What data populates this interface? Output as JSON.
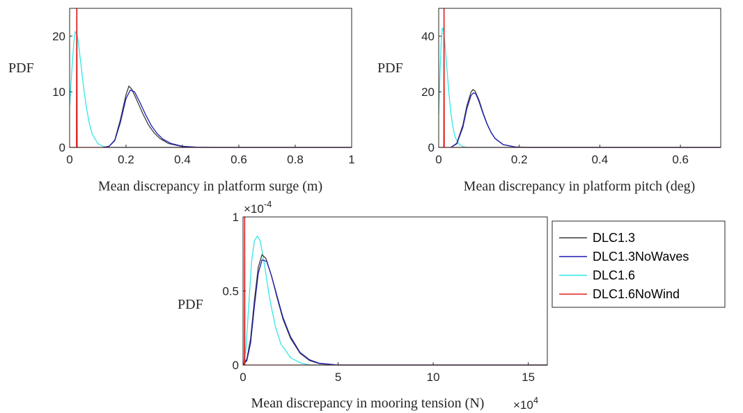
{
  "chart_data": [
    {
      "type": "line",
      "xlabel": "Mean discrepancy in platform surge (m)",
      "ylabel": "PDF",
      "xlim": [
        0,
        1
      ],
      "ylim": [
        0,
        25
      ],
      "xticks": [
        {
          "v": 0,
          "t": "0"
        },
        {
          "v": 0.2,
          "t": "0.2"
        },
        {
          "v": 0.4,
          "t": "0.4"
        },
        {
          "v": 0.6,
          "t": "0.6"
        },
        {
          "v": 0.8,
          "t": "0.8"
        },
        {
          "v": 1,
          "t": "1"
        }
      ],
      "yticks": [
        {
          "v": 0,
          "t": "0"
        },
        {
          "v": 10,
          "t": "10"
        },
        {
          "v": 20,
          "t": "20"
        }
      ],
      "grid": false,
      "series": [
        {
          "name": "DLC1.3",
          "color": "#3a3a3a",
          "x": [
            0.12,
            0.14,
            0.16,
            0.18,
            0.2,
            0.21,
            0.22,
            0.24,
            0.26,
            0.28,
            0.3,
            0.32,
            0.35,
            0.4,
            0.45,
            0.5,
            1.0
          ],
          "y": [
            0,
            0.2,
            1.3,
            5.0,
            9.5,
            11.0,
            10.5,
            8.3,
            6.0,
            4.0,
            2.6,
            1.6,
            0.7,
            0.15,
            0.03,
            0,
            0
          ]
        },
        {
          "name": "DLC1.3NoWaves",
          "color": "#1a1ab0",
          "x": [
            0.12,
            0.14,
            0.16,
            0.18,
            0.2,
            0.215,
            0.23,
            0.25,
            0.27,
            0.29,
            0.31,
            0.33,
            0.36,
            0.4,
            0.45,
            0.5,
            1.0
          ],
          "y": [
            0,
            0.2,
            1.2,
            4.5,
            8.8,
            10.3,
            10.0,
            8.0,
            5.8,
            3.9,
            2.5,
            1.5,
            0.7,
            0.2,
            0.04,
            0,
            0
          ]
        },
        {
          "name": "DLC1.6",
          "color": "#33e6e6",
          "x": [
            0,
            0.005,
            0.01,
            0.015,
            0.02,
            0.025,
            0.03,
            0.04,
            0.05,
            0.06,
            0.07,
            0.08,
            0.1,
            0.12,
            0.14,
            1.0
          ],
          "y": [
            7.5,
            11.5,
            15.5,
            19.0,
            20.8,
            20.5,
            19.2,
            15.0,
            10.5,
            7.0,
            4.3,
            2.4,
            0.7,
            0.15,
            0,
            0
          ]
        },
        {
          "name": "DLC1.6NoWind",
          "color": "#e02020",
          "x": [
            0,
            0.024,
            0.025,
            0.026,
            0.027,
            1.0
          ],
          "y": [
            0,
            0,
            25,
            25,
            0,
            0
          ]
        }
      ]
    },
    {
      "type": "line",
      "xlabel": "Mean discrepancy in platform pitch (deg)",
      "ylabel": "PDF",
      "xlim": [
        0,
        0.7
      ],
      "ylim": [
        0,
        50
      ],
      "xticks": [
        {
          "v": 0,
          "t": "0"
        },
        {
          "v": 0.2,
          "t": "0.2"
        },
        {
          "v": 0.4,
          "t": "0.4"
        },
        {
          "v": 0.6,
          "t": "0.6"
        }
      ],
      "yticks": [
        {
          "v": 0,
          "t": "0"
        },
        {
          "v": 20,
          "t": "20"
        },
        {
          "v": 40,
          "t": "40"
        }
      ],
      "grid": false,
      "series": [
        {
          "name": "DLC1.3",
          "color": "#3a3a3a",
          "x": [
            0.03,
            0.045,
            0.06,
            0.07,
            0.08,
            0.085,
            0.09,
            0.1,
            0.11,
            0.12,
            0.13,
            0.14,
            0.16,
            0.19,
            0.22,
            0.7
          ],
          "y": [
            0,
            1.5,
            8.0,
            15.0,
            19.8,
            20.8,
            20.3,
            17.0,
            12.5,
            8.5,
            5.4,
            3.2,
            1.0,
            0.15,
            0,
            0
          ]
        },
        {
          "name": "DLC1.3NoWaves",
          "color": "#1a1ab0",
          "x": [
            0.03,
            0.045,
            0.06,
            0.07,
            0.08,
            0.086,
            0.092,
            0.1,
            0.11,
            0.12,
            0.13,
            0.14,
            0.16,
            0.19,
            0.22,
            0.7
          ],
          "y": [
            0,
            1.3,
            7.2,
            14.0,
            18.6,
            19.6,
            19.3,
            16.5,
            12.2,
            8.4,
            5.4,
            3.2,
            1.0,
            0.15,
            0,
            0
          ]
        },
        {
          "name": "DLC1.6",
          "color": "#33e6e6",
          "x": [
            0,
            0.003,
            0.006,
            0.009,
            0.012,
            0.015,
            0.02,
            0.025,
            0.03,
            0.035,
            0.04,
            0.05,
            0.06,
            0.07,
            0.7
          ],
          "y": [
            12,
            26,
            37,
            43,
            42,
            38,
            29,
            20,
            12.5,
            7.5,
            4.0,
            1.2,
            0.3,
            0,
            0
          ]
        },
        {
          "name": "DLC1.6NoWind",
          "color": "#e02020",
          "x": [
            0,
            0.0125,
            0.013,
            0.0135,
            0.014,
            0.7
          ],
          "y": [
            0,
            0,
            50,
            50,
            0,
            0
          ]
        }
      ]
    },
    {
      "type": "line",
      "xlabel": "Mean discrepancy in mooring tension (N)",
      "ylabel": "PDF",
      "xlim": [
        0,
        16
      ],
      "ylim": [
        0,
        1
      ],
      "x_multiplier": "×10",
      "x_multiplier_exp": "4",
      "y_multiplier": "×10",
      "y_multiplier_exp": "-4",
      "xticks": [
        {
          "v": 0,
          "t": "0"
        },
        {
          "v": 5,
          "t": "5"
        },
        {
          "v": 10,
          "t": "10"
        },
        {
          "v": 15,
          "t": "15"
        }
      ],
      "yticks": [
        {
          "v": 0,
          "t": "0"
        },
        {
          "v": 0.5,
          "t": "0.5"
        },
        {
          "v": 1,
          "t": "1"
        }
      ],
      "grid": false,
      "series": [
        {
          "name": "DLC1.3",
          "color": "#3a3a3a",
          "x": [
            0,
            0.2,
            0.4,
            0.6,
            0.8,
            1.0,
            1.2,
            1.5,
            1.8,
            2.1,
            2.5,
            3.0,
            3.5,
            4.0,
            5.0,
            16.0
          ],
          "y": [
            0,
            0.04,
            0.18,
            0.44,
            0.66,
            0.745,
            0.72,
            0.6,
            0.45,
            0.31,
            0.18,
            0.08,
            0.03,
            0.01,
            0,
            0
          ]
        },
        {
          "name": "DLC1.3NoWaves",
          "color": "#1a1ab0",
          "x": [
            0,
            0.2,
            0.4,
            0.6,
            0.8,
            1.0,
            1.25,
            1.5,
            1.8,
            2.1,
            2.5,
            3.0,
            3.5,
            4.0,
            5.0,
            16.0
          ],
          "y": [
            0,
            0.03,
            0.15,
            0.4,
            0.62,
            0.71,
            0.7,
            0.6,
            0.46,
            0.32,
            0.19,
            0.085,
            0.035,
            0.012,
            0,
            0
          ]
        },
        {
          "name": "DLC1.6",
          "color": "#33e6e6",
          "x": [
            0,
            0.15,
            0.3,
            0.45,
            0.6,
            0.75,
            0.9,
            1.1,
            1.4,
            1.7,
            2.0,
            2.5,
            3.0,
            3.5,
            16.0
          ],
          "y": [
            0,
            0.1,
            0.4,
            0.7,
            0.84,
            0.87,
            0.84,
            0.7,
            0.45,
            0.26,
            0.14,
            0.05,
            0.015,
            0,
            0
          ]
        },
        {
          "name": "DLC1.6NoWind",
          "color": "#e02020",
          "x": [
            0,
            0.07,
            0.08,
            0.09,
            0.1,
            16.0
          ],
          "y": [
            0,
            0,
            1,
            1,
            0,
            0
          ]
        }
      ],
      "legend": {
        "placement": "right",
        "entries": [
          {
            "name": "DLC1.3",
            "color": "#3a3a3a"
          },
          {
            "name": "DLC1.3NoWaves",
            "color": "#1a1ab0"
          },
          {
            "name": "DLC1.6",
            "color": "#33e6e6"
          },
          {
            "name": "DLC1.6NoWind",
            "color": "#e02020"
          }
        ]
      }
    }
  ]
}
